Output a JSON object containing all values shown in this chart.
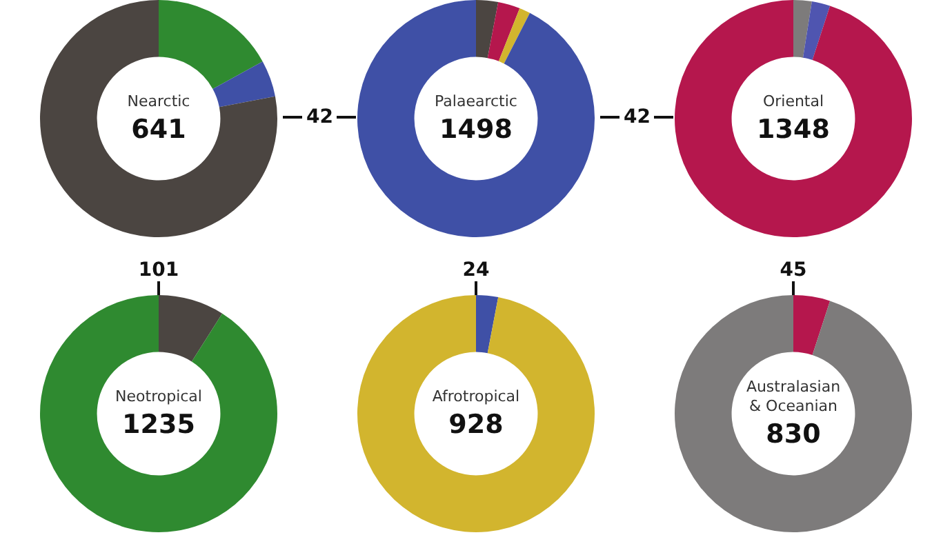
{
  "chart_data": [
    {
      "type": "donut",
      "title": "Nearctic",
      "categories": [
        null,
        null,
        null
      ],
      "values": [
        17,
        5,
        78
      ],
      "colors": [
        "#2f8a30",
        "#3f50a6",
        "#4b4541"
      ],
      "legend": false,
      "annotations": [
        "641",
        "42",
        "101"
      ]
    },
    {
      "type": "donut",
      "title": "Palaearctic",
      "categories": [
        null,
        null,
        null,
        null
      ],
      "values": [
        3,
        3,
        1.5,
        92.5
      ],
      "colors": [
        "#4b4541",
        "#b5174d",
        "#d2b52e",
        "#3f50a6"
      ],
      "legend": false,
      "annotations": [
        "1498",
        "42",
        "24"
      ]
    },
    {
      "type": "donut",
      "title": "Oriental",
      "categories": [
        null,
        null,
        null
      ],
      "values": [
        2.5,
        2.5,
        95
      ],
      "colors": [
        "#7d7b7b",
        "#4f55b0",
        "#b5174d"
      ],
      "legend": false,
      "annotations": [
        "1348",
        "45"
      ]
    },
    {
      "type": "donut",
      "title": "Neotropical",
      "categories": [
        null,
        null
      ],
      "values": [
        9,
        91
      ],
      "colors": [
        "#4b4541",
        "#2f8a30"
      ],
      "legend": false,
      "annotations": [
        "1235"
      ]
    },
    {
      "type": "donut",
      "title": "Afrotropical",
      "categories": [
        null,
        null
      ],
      "values": [
        3,
        97
      ],
      "colors": [
        "#3f50a6",
        "#d2b52e"
      ],
      "legend": false,
      "annotations": [
        "928"
      ]
    },
    {
      "type": "donut",
      "title": "Australasian\n& Oceanian",
      "categories": [
        null,
        null
      ],
      "values": [
        5,
        95
      ],
      "colors": [
        "#b5174d",
        "#7d7b7b"
      ],
      "legend": false,
      "annotations": [
        "830"
      ]
    }
  ]
}
